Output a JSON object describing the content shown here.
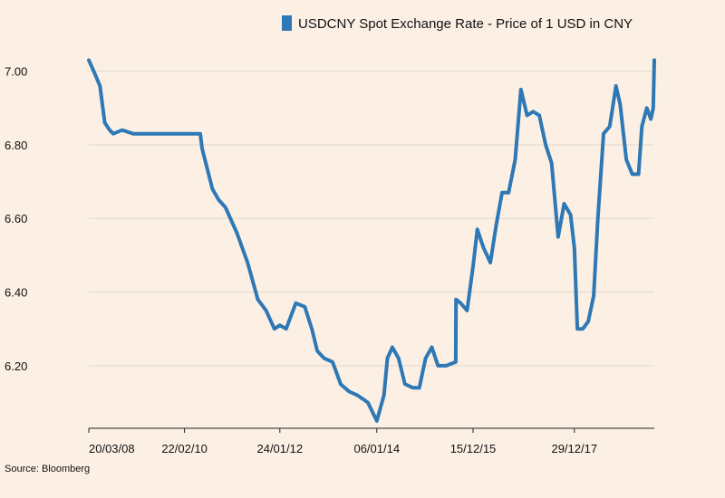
{
  "chart_data": {
    "type": "line",
    "legend_position": "top-right",
    "grid": "horizontal",
    "source": "Source: Bloomberg",
    "ylim": [
      6.03,
      7.09
    ],
    "yticks": [
      7.0,
      6.8,
      6.6,
      6.4,
      6.2
    ],
    "ytick_labels": [
      "7.00",
      "6.80",
      "6.60",
      "6.40",
      "6.20"
    ],
    "xlim": [
      "2008-03-20",
      "2019-08-09"
    ],
    "xticks": [
      "2008-03-20",
      "2010-02-22",
      "2012-01-24",
      "2014-01-06",
      "2015-12-15",
      "2017-12-29"
    ],
    "xtick_labels": [
      "20/03/08",
      "22/02/10",
      "24/01/12",
      "06/01/14",
      "15/12/15",
      "29/12/17"
    ],
    "colors": {
      "series": "#2e78b6",
      "background": "#fcf0e4",
      "grid": "#e3d9cf",
      "axis": "#222222"
    },
    "series": [
      {
        "name": "USDCNY Spot Exchange Rate - Price of 1 USD in CNY",
        "x": [
          "2008-03-20",
          "2008-04-25",
          "2008-06-10",
          "2008-07-15",
          "2008-08-20",
          "2008-09-15",
          "2008-11-20",
          "2009-02-10",
          "2009-06-01",
          "2009-10-01",
          "2010-02-22",
          "2010-06-18",
          "2010-07-01",
          "2010-09-15",
          "2010-11-01",
          "2010-12-20",
          "2011-03-15",
          "2011-06-01",
          "2011-08-15",
          "2011-10-15",
          "2011-12-15",
          "2012-01-24",
          "2012-03-10",
          "2012-05-20",
          "2012-07-25",
          "2012-09-15",
          "2012-10-25",
          "2012-12-15",
          "2013-02-15",
          "2013-04-15",
          "2013-06-15",
          "2013-08-15",
          "2013-11-01",
          "2014-01-06",
          "2014-02-28",
          "2014-03-25",
          "2014-04-30",
          "2014-06-15",
          "2014-08-01",
          "2014-09-30",
          "2014-11-15",
          "2014-12-31",
          "2015-02-15",
          "2015-04-01",
          "2015-06-01",
          "2015-08-10",
          "2015-08-12",
          "2015-09-15",
          "2015-11-01",
          "2015-12-15",
          "2016-01-15",
          "2016-03-01",
          "2016-04-20",
          "2016-06-01",
          "2016-07-15",
          "2016-09-01",
          "2016-10-20",
          "2016-12-01",
          "2016-12-20",
          "2017-01-15",
          "2017-03-01",
          "2017-04-15",
          "2017-06-01",
          "2017-07-15",
          "2017-09-01",
          "2017-10-15",
          "2017-12-01",
          "2017-12-29",
          "2018-01-20",
          "2018-03-01",
          "2018-04-10",
          "2018-05-20",
          "2018-06-20",
          "2018-08-01",
          "2018-09-15",
          "2018-10-31",
          "2018-12-01",
          "2019-01-15",
          "2019-02-28",
          "2019-04-15",
          "2019-05-10",
          "2019-06-15",
          "2019-07-15",
          "2019-08-01",
          "2019-08-09"
        ],
        "y": [
          7.03,
          7.0,
          6.96,
          6.86,
          6.84,
          6.83,
          6.84,
          6.83,
          6.83,
          6.83,
          6.83,
          6.83,
          6.79,
          6.68,
          6.65,
          6.63,
          6.56,
          6.48,
          6.38,
          6.35,
          6.3,
          6.31,
          6.3,
          6.37,
          6.36,
          6.3,
          6.24,
          6.22,
          6.21,
          6.15,
          6.13,
          6.12,
          6.1,
          6.05,
          6.12,
          6.22,
          6.25,
          6.22,
          6.15,
          6.14,
          6.14,
          6.22,
          6.25,
          6.2,
          6.2,
          6.21,
          6.38,
          6.37,
          6.35,
          6.47,
          6.57,
          6.52,
          6.48,
          6.58,
          6.67,
          6.67,
          6.76,
          6.95,
          6.92,
          6.88,
          6.89,
          6.88,
          6.8,
          6.75,
          6.55,
          6.64,
          6.61,
          6.52,
          6.3,
          6.3,
          6.32,
          6.39,
          6.6,
          6.83,
          6.85,
          6.96,
          6.91,
          6.76,
          6.72,
          6.72,
          6.85,
          6.9,
          6.87,
          6.9,
          7.03
        ]
      }
    ]
  }
}
